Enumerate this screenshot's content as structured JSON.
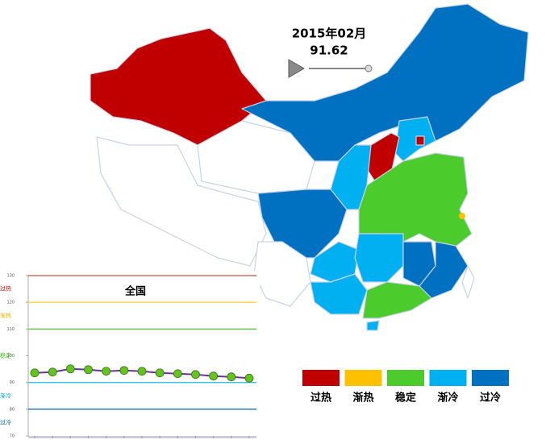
{
  "header": {
    "period": "2015年02月",
    "value": 91.62
  },
  "legend": [
    {
      "label": "过热",
      "color": "#c00000"
    },
    {
      "label": "渐热",
      "color": "#ffc000"
    },
    {
      "label": "稳定",
      "color": "#4ccc2c"
    },
    {
      "label": "渐冷",
      "color": "#00b0f0"
    },
    {
      "label": "过冷",
      "color": "#0070c0"
    }
  ],
  "chart_data": {
    "type": "line",
    "title": "全国",
    "categories": [
      null,
      null,
      null,
      null,
      null,
      null,
      null,
      null,
      null,
      null,
      null,
      null,
      null
    ],
    "series": [
      {
        "color": "#7030a0",
        "marker_color": "#66c21f",
        "values": [
          93.6,
          93.9,
          95.1,
          94.8,
          94.2,
          94.5,
          94.2,
          93.6,
          93.3,
          93.0,
          92.4,
          92.1,
          91.62
        ]
      }
    ],
    "ylim": [
      70,
      130
    ],
    "yticks": [
      70,
      80,
      90,
      100,
      110,
      120,
      130
    ],
    "thresholds": [
      {
        "value": 130,
        "color": "#c0504d"
      },
      {
        "value": 120,
        "color": "#ffd633"
      },
      {
        "value": 110,
        "color": "#5ccc3c"
      },
      {
        "value": 90,
        "color": "#33c0f0"
      },
      {
        "value": 80,
        "color": "#1f6fb8"
      }
    ],
    "bands": [
      {
        "label": "过热",
        "color": "#c00000"
      },
      {
        "label": "渐热",
        "color": "#f0b000"
      },
      {
        "label": "稳定",
        "color": "#3cb81c"
      },
      {
        "label": "渐冷",
        "color": "#00a0e0"
      },
      {
        "label": "过冷",
        "color": "#0060b0"
      }
    ]
  }
}
